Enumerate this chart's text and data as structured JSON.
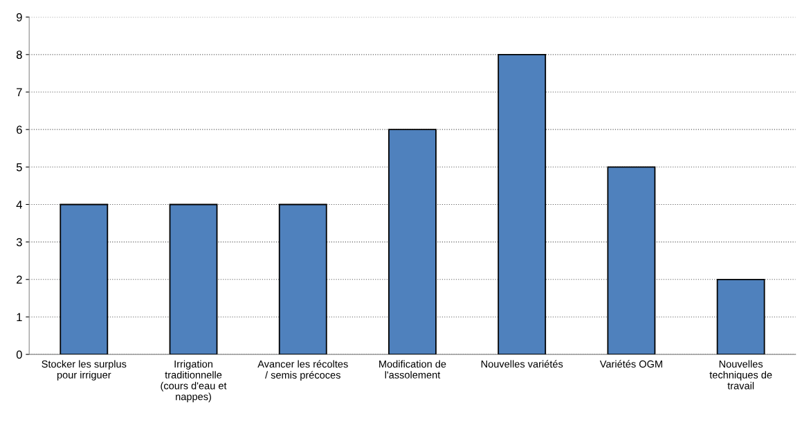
{
  "chart_data": {
    "type": "bar",
    "categories": [
      "Stocker les surplus\npour irriguer",
      "Irrigation\ntraditionnelle\n(cours d'eau et\nnappes)",
      "Avancer les récoltes\n/ semis précoces",
      "Modification de\nl'assolement",
      "Nouvelles variétés",
      "Variétés OGM",
      "Nouvelles\ntechniques de\ntravail"
    ],
    "values": [
      4,
      4,
      4,
      6,
      8,
      5,
      2
    ],
    "color": "#4f81bd",
    "ylim": [
      0,
      9
    ],
    "yticks": [
      0,
      1,
      2,
      3,
      4,
      5,
      6,
      7,
      8,
      9
    ],
    "grid": "y",
    "legend": false
  }
}
